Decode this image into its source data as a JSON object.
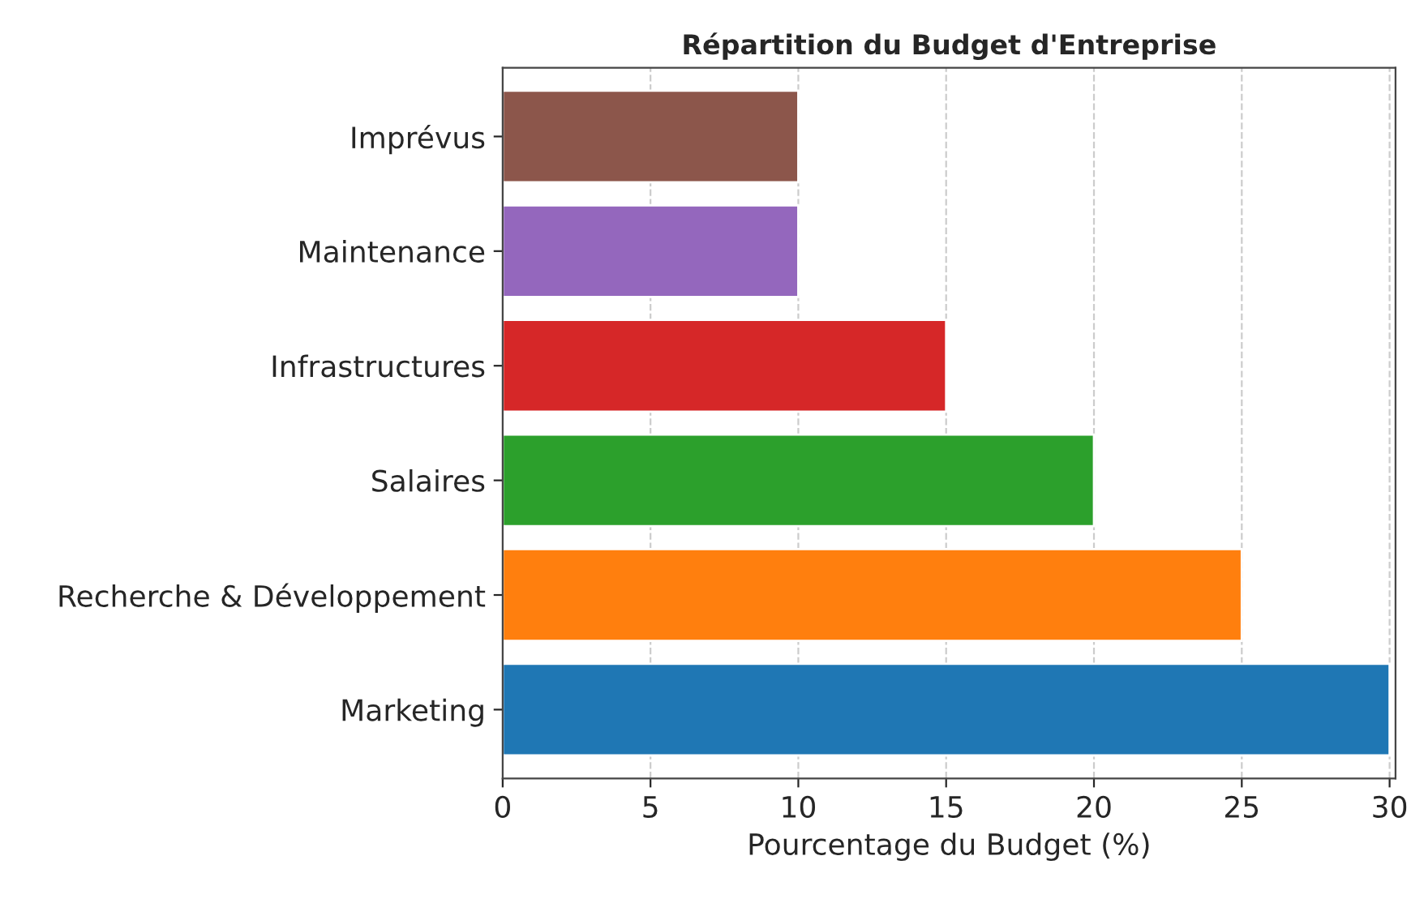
{
  "chart_data": {
    "type": "bar",
    "orientation": "horizontal",
    "title": "Répartition du Budget d'Entreprise",
    "xlabel": "Pourcentage du Budget (%)",
    "categories": [
      "Imprévus",
      "Maintenance",
      "Infrastructures",
      "Salaires",
      "Recherche & Développement",
      "Marketing"
    ],
    "values": [
      10,
      10,
      15,
      20,
      25,
      30
    ],
    "colors": [
      "#8c564b",
      "#9467bd",
      "#d62728",
      "#2ca02c",
      "#ff7f0e",
      "#1f77b4"
    ],
    "xlim": [
      0,
      30.2
    ],
    "xticks": [
      0,
      5,
      10,
      15,
      20,
      25,
      30
    ],
    "grid": "x"
  }
}
